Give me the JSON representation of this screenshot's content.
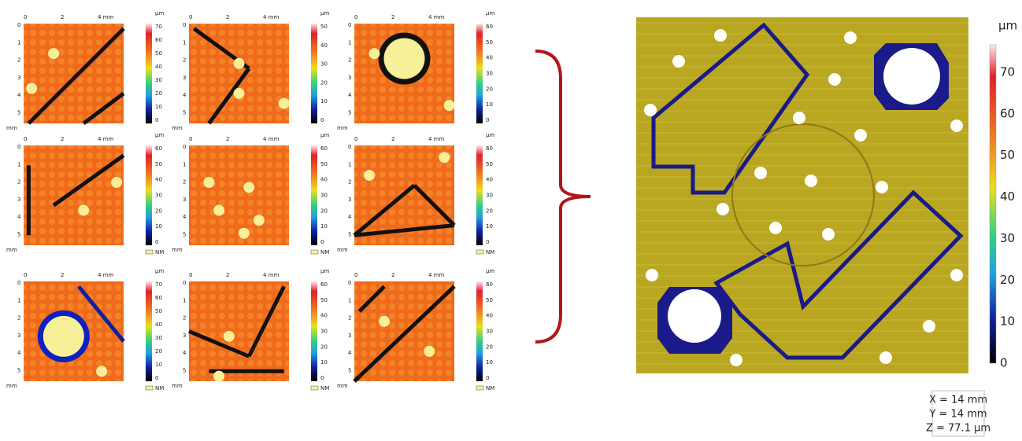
{
  "tiles": [
    {
      "x_ticks": [
        "0",
        "2",
        "4 mm"
      ],
      "y_ticks": [
        "0",
        "1",
        "2",
        "3",
        "4",
        "5"
      ],
      "y_unit": "mm",
      "colorbar_unit": "μm",
      "colorbar_ticks": [
        "70",
        "60",
        "50",
        "40",
        "30",
        "20",
        "10",
        "0"
      ]
    },
    {
      "x_ticks": [
        "0",
        "2",
        "4 mm"
      ],
      "y_ticks": [
        "0",
        "1",
        "2",
        "3",
        "4",
        "5"
      ],
      "y_unit": "mm",
      "colorbar_unit": "μm",
      "colorbar_ticks": [
        "50",
        "40",
        "30",
        "20",
        "10",
        "0"
      ]
    },
    {
      "x_ticks": [
        "0",
        "2",
        "4 mm"
      ],
      "y_ticks": [
        "0",
        "1",
        "2",
        "3",
        "4",
        "5"
      ],
      "y_unit": "mm",
      "colorbar_unit": "μm",
      "colorbar_ticks": [
        "60",
        "50",
        "40",
        "30",
        "20",
        "10",
        "0"
      ]
    },
    {
      "x_ticks": [
        "0",
        "2",
        "4 mm"
      ],
      "y_ticks": [
        "0",
        "1",
        "2",
        "3",
        "4",
        "5"
      ],
      "y_unit": "mm",
      "colorbar_unit": "μm",
      "colorbar_ticks": [
        "60",
        "50",
        "40",
        "30",
        "20",
        "10",
        "0"
      ],
      "legend": "NM"
    },
    {
      "x_ticks": [
        "0",
        "2",
        "4 mm"
      ],
      "y_ticks": [
        "0",
        "1",
        "2",
        "3",
        "4",
        "5"
      ],
      "y_unit": "mm",
      "colorbar_unit": "μm",
      "colorbar_ticks": [
        "60",
        "50",
        "40",
        "30",
        "20",
        "10",
        "0"
      ],
      "legend": "NM"
    },
    {
      "x_ticks": [
        "0",
        "2",
        "4 mm"
      ],
      "y_ticks": [
        "0",
        "1",
        "2",
        "3",
        "4",
        "5"
      ],
      "y_unit": "mm",
      "colorbar_unit": "μm",
      "colorbar_ticks": [
        "60",
        "50",
        "40",
        "30",
        "20",
        "10",
        "0"
      ],
      "legend": "NM"
    },
    {
      "x_ticks": [
        "0",
        "2",
        "4 mm"
      ],
      "y_ticks": [
        "0",
        "1",
        "2",
        "3",
        "4",
        "5"
      ],
      "y_unit": "mm",
      "colorbar_unit": "μm",
      "colorbar_ticks": [
        "70",
        "60",
        "50",
        "40",
        "30",
        "20",
        "10",
        "0"
      ],
      "legend": "NM"
    },
    {
      "x_ticks": [
        "0",
        "2",
        "4 mm"
      ],
      "y_ticks": [
        "0",
        "1",
        "2",
        "3",
        "4",
        "5"
      ],
      "y_unit": "mm",
      "colorbar_unit": "μm",
      "colorbar_ticks": [
        "60",
        "50",
        "40",
        "30",
        "20",
        "10",
        "0"
      ],
      "legend": "NM"
    },
    {
      "x_ticks": [
        "0",
        "2",
        "4 mm"
      ],
      "y_ticks": [
        "0",
        "1",
        "2",
        "3",
        "4",
        "5"
      ],
      "y_unit": "mm",
      "colorbar_unit": "μm",
      "colorbar_ticks": [
        "60",
        "50",
        "40",
        "30",
        "20",
        "10",
        "0"
      ],
      "legend": "NM"
    }
  ],
  "stitched": {
    "colorbar_unit": "μm",
    "colorbar_ticks": [
      "70",
      "60",
      "50",
      "40",
      "30",
      "20",
      "10",
      "0"
    ],
    "dimensions": [
      "X = 14 mm",
      "Y = 14 mm",
      "Z = 77.1 μm"
    ]
  }
}
